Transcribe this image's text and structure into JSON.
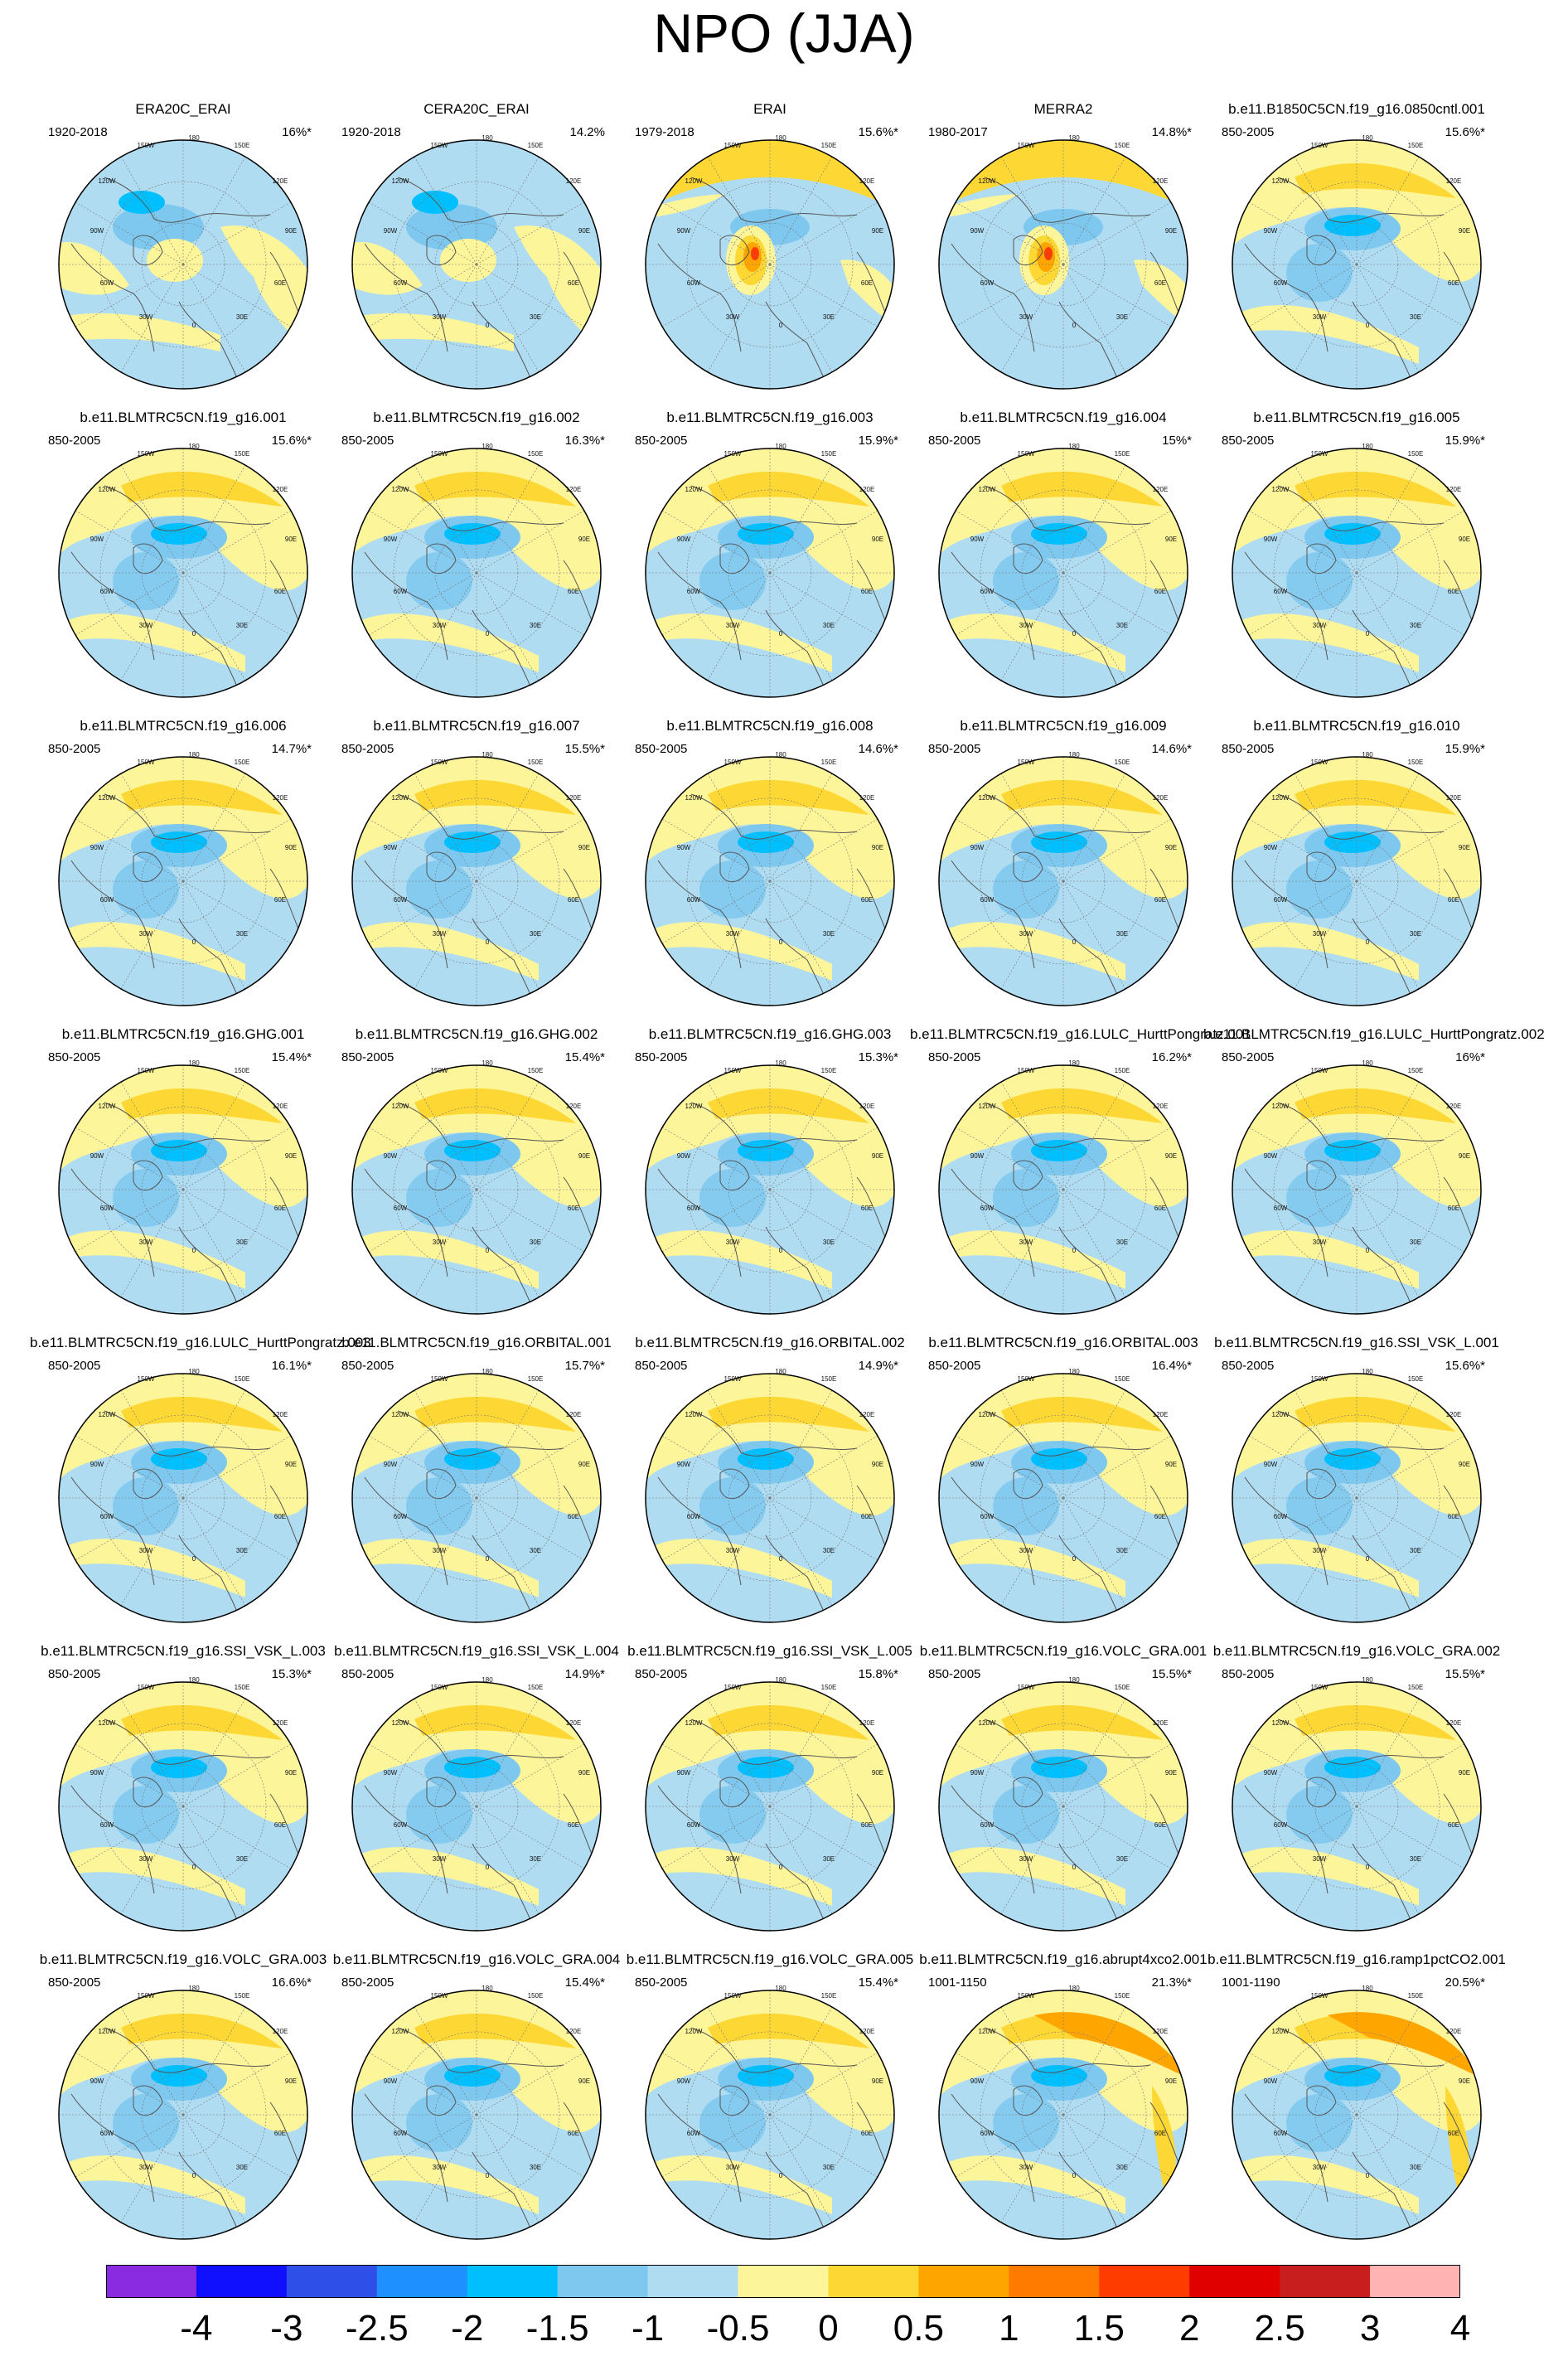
{
  "title": "NPO (JJA)",
  "panels": [
    {
      "title": "ERA20C_ERAI",
      "range": "1920-2018",
      "pct": "16%*",
      "pattern": "ra"
    },
    {
      "title": "CERA20C_ERAI",
      "range": "1920-2018",
      "pct": "14.2%",
      "pattern": "ra"
    },
    {
      "title": "ERAI",
      "range": "1979-2018",
      "pct": "15.6%*",
      "pattern": "ob"
    },
    {
      "title": "MERRA2",
      "range": "1980-2017",
      "pct": "14.8%*",
      "pattern": "ob"
    },
    {
      "title": "b.e11.B1850C5CN.f19_g16.0850cntl.001",
      "range": "850-2005",
      "pct": "15.6%*",
      "pattern": "m"
    },
    {
      "title": "b.e11.BLMTRC5CN.f19_g16.001",
      "range": "850-2005",
      "pct": "15.6%*",
      "pattern": "m"
    },
    {
      "title": "b.e11.BLMTRC5CN.f19_g16.002",
      "range": "850-2005",
      "pct": "16.3%*",
      "pattern": "m"
    },
    {
      "title": "b.e11.BLMTRC5CN.f19_g16.003",
      "range": "850-2005",
      "pct": "15.9%*",
      "pattern": "m"
    },
    {
      "title": "b.e11.BLMTRC5CN.f19_g16.004",
      "range": "850-2005",
      "pct": "15%*",
      "pattern": "m"
    },
    {
      "title": "b.e11.BLMTRC5CN.f19_g16.005",
      "range": "850-2005",
      "pct": "15.9%*",
      "pattern": "m"
    },
    {
      "title": "b.e11.BLMTRC5CN.f19_g16.006",
      "range": "850-2005",
      "pct": "14.7%*",
      "pattern": "m"
    },
    {
      "title": "b.e11.BLMTRC5CN.f19_g16.007",
      "range": "850-2005",
      "pct": "15.5%*",
      "pattern": "m"
    },
    {
      "title": "b.e11.BLMTRC5CN.f19_g16.008",
      "range": "850-2005",
      "pct": "14.6%*",
      "pattern": "m"
    },
    {
      "title": "b.e11.BLMTRC5CN.f19_g16.009",
      "range": "850-2005",
      "pct": "14.6%*",
      "pattern": "m"
    },
    {
      "title": "b.e11.BLMTRC5CN.f19_g16.010",
      "range": "850-2005",
      "pct": "15.9%*",
      "pattern": "m"
    },
    {
      "title": "b.e11.BLMTRC5CN.f19_g16.GHG.001",
      "range": "850-2005",
      "pct": "15.4%*",
      "pattern": "m"
    },
    {
      "title": "b.e11.BLMTRC5CN.f19_g16.GHG.002",
      "range": "850-2005",
      "pct": "15.4%*",
      "pattern": "m"
    },
    {
      "title": "b.e11.BLMTRC5CN.f19_g16.GHG.003",
      "range": "850-2005",
      "pct": "15.3%*",
      "pattern": "m"
    },
    {
      "title": "b.e11.BLMTRC5CN.f19_g16.LULC_HurttPongratz.001",
      "range": "850-2005",
      "pct": "16.2%*",
      "pattern": "m"
    },
    {
      "title": "b.e11.BLMTRC5CN.f19_g16.LULC_HurttPongratz.002",
      "range": "850-2005",
      "pct": "16%*",
      "pattern": "m"
    },
    {
      "title": "b.e11.BLMTRC5CN.f19_g16.LULC_HurttPongratz.003",
      "range": "850-2005",
      "pct": "16.1%*",
      "pattern": "m"
    },
    {
      "title": "b.e11.BLMTRC5CN.f19_g16.ORBITAL.001",
      "range": "850-2005",
      "pct": "15.7%*",
      "pattern": "m"
    },
    {
      "title": "b.e11.BLMTRC5CN.f19_g16.ORBITAL.002",
      "range": "850-2005",
      "pct": "14.9%*",
      "pattern": "m"
    },
    {
      "title": "b.e11.BLMTRC5CN.f19_g16.ORBITAL.003",
      "range": "850-2005",
      "pct": "16.4%*",
      "pattern": "m"
    },
    {
      "title": "b.e11.BLMTRC5CN.f19_g16.SSI_VSK_L.001",
      "range": "850-2005",
      "pct": "15.6%*",
      "pattern": "m"
    },
    {
      "title": "b.e11.BLMTRC5CN.f19_g16.SSI_VSK_L.003",
      "range": "850-2005",
      "pct": "15.3%*",
      "pattern": "m"
    },
    {
      "title": "b.e11.BLMTRC5CN.f19_g16.SSI_VSK_L.004",
      "range": "850-2005",
      "pct": "14.9%*",
      "pattern": "m"
    },
    {
      "title": "b.e11.BLMTRC5CN.f19_g16.SSI_VSK_L.005",
      "range": "850-2005",
      "pct": "15.8%*",
      "pattern": "m"
    },
    {
      "title": "b.e11.BLMTRC5CN.f19_g16.VOLC_GRA.001",
      "range": "850-2005",
      "pct": "15.5%*",
      "pattern": "m"
    },
    {
      "title": "b.e11.BLMTRC5CN.f19_g16.VOLC_GRA.002",
      "range": "850-2005",
      "pct": "15.5%*",
      "pattern": "m"
    },
    {
      "title": "b.e11.BLMTRC5CN.f19_g16.VOLC_GRA.003",
      "range": "850-2005",
      "pct": "16.6%*",
      "pattern": "m"
    },
    {
      "title": "b.e11.BLMTRC5CN.f19_g16.VOLC_GRA.004",
      "range": "850-2005",
      "pct": "15.4%*",
      "pattern": "m"
    },
    {
      "title": "b.e11.BLMTRC5CN.f19_g16.VOLC_GRA.005",
      "range": "850-2005",
      "pct": "15.4%*",
      "pattern": "m"
    },
    {
      "title": "b.e11.BLMTRC5CN.f19_g16.abrupt4xco2.001",
      "range": "1001-1150",
      "pct": "21.3%*",
      "pattern": "x"
    },
    {
      "title": "b.e11.BLMTRC5CN.f19_g16.ramp1pctCO2.001",
      "range": "1001-1190",
      "pct": "20.5%*",
      "pattern": "x"
    }
  ],
  "lon_labels": {
    "top": "180",
    "tl": "150W",
    "tr": "150E",
    "ul": "120W",
    "ur": "120E",
    "ml": "90W",
    "mr": "90E",
    "ll": "60W",
    "lr": "60E",
    "bl": "30W",
    "br": "30E",
    "bottom": "0"
  },
  "colorbar": {
    "colors": [
      "#8a2be2",
      "#1010ff",
      "#2f50e8",
      "#1e90ff",
      "#00bfff",
      "#7ec8f0",
      "#b0dcf2",
      "#fdf59a",
      "#fdd835",
      "#ffa500",
      "#ff7b00",
      "#ff3c00",
      "#e00000",
      "#c81e1e",
      "#ffb3b3"
    ],
    "labels": [
      "-4",
      "-3",
      "-2.5",
      "-2",
      "-1.5",
      "-1",
      "-0.5",
      "0",
      "0.5",
      "1",
      "1.5",
      "2",
      "2.5",
      "3",
      "4"
    ]
  },
  "fill_colors": {
    "ocean_neg": "#b0dcf2",
    "pos_light": "#fdf59a",
    "pos_mid": "#fdd835",
    "neg_mid": "#7ec8f0",
    "neg_strong": "#00bfff",
    "pos_strong": "#ffa500",
    "pos_peak": "#ff3c00"
  }
}
